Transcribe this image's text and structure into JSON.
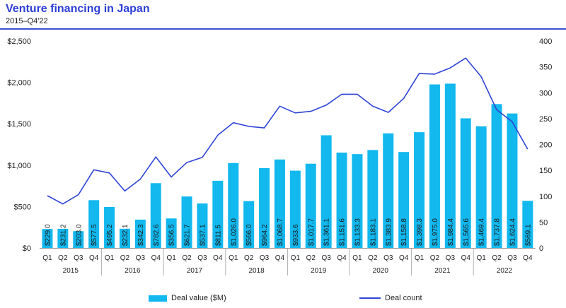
{
  "title": "Venture financing in Japan",
  "subtitle": "2015–Q4'22",
  "colors": {
    "bar": "#12b8ee",
    "line": "#2f44d6",
    "title": "#2e3fd6",
    "rule": "#3b4fd8"
  },
  "legend": {
    "bar_label": "Deal value ($M)",
    "line_label": "Deal count"
  },
  "chart_data": {
    "type": "bar",
    "categories": [
      "Q1",
      "Q2",
      "Q3",
      "Q4",
      "Q1",
      "Q2",
      "Q3",
      "Q4",
      "Q1",
      "Q2",
      "Q3",
      "Q4",
      "Q1",
      "Q2",
      "Q3",
      "Q4",
      "Q1",
      "Q2",
      "Q3",
      "Q4",
      "Q1",
      "Q2",
      "Q3",
      "Q4",
      "Q1",
      "Q2",
      "Q3",
      "Q4",
      "Q1",
      "Q2",
      "Q3",
      "Q4"
    ],
    "years": [
      "2015",
      "2016",
      "2017",
      "2018",
      "2019",
      "2020",
      "2021",
      "2022"
    ],
    "series": [
      {
        "name": "Deal value ($M)",
        "axis": "left",
        "values": [
          229.0,
          231.2,
          203.0,
          577.5,
          495.2,
          232.1,
          342.3,
          782.6,
          356.5,
          621.7,
          537.1,
          811.5,
          1026.0,
          566.0,
          964.2,
          1068.7,
          933.6,
          1017.7,
          1361.1,
          1151.6,
          1133.3,
          1183.1,
          1383.9,
          1158.8,
          1398.3,
          1975.0,
          1984.4,
          1565.6,
          1469.4,
          1737.8,
          1624.4,
          569.1
        ],
        "labels": [
          "$229.0",
          "$231.2",
          "$203.0",
          "$577.5",
          "$495.2",
          "$232.1",
          "$342.3",
          "$782.6",
          "$356.5",
          "$621.7",
          "$537.1",
          "$811.5",
          "$1,026.0",
          "$566.0",
          "$964.2",
          "$1,068.7",
          "$933.6",
          "$1,017.7",
          "$1,361.1",
          "$1,151.6",
          "$1,133.3",
          "$1,183.1",
          "$1,383.9",
          "$1,158.8",
          "$1,398.3",
          "$1,975.0",
          "$1,984.4",
          "$1,565.6",
          "$1,469.4",
          "$1,737.8",
          "$1,624.4",
          "$569.1"
        ]
      },
      {
        "name": "Deal count",
        "axis": "right",
        "type": "line",
        "values": [
          101,
          85,
          103,
          151,
          145,
          110,
          133,
          176,
          137,
          165,
          175,
          218,
          242,
          235,
          232,
          274,
          261,
          264,
          276,
          297,
          297,
          274,
          262,
          289,
          337,
          336,
          348,
          367,
          331,
          267,
          244,
          191
        ]
      }
    ],
    "ylim_left": [
      0,
      2500
    ],
    "yticks_left": [
      0,
      500,
      1000,
      1500,
      2000,
      2500
    ],
    "yticklabels_left": [
      "$0",
      "$500",
      "$1,000",
      "$1,500",
      "$2,000",
      "$2,500"
    ],
    "ylim_right": [
      0,
      400
    ],
    "yticks_right": [
      0,
      50,
      100,
      150,
      200,
      250,
      300,
      350,
      400
    ],
    "yticklabels_right": [
      "0",
      "50",
      "100",
      "150",
      "200",
      "250",
      "300",
      "350",
      "400"
    ],
    "grid": false,
    "legend_position": "bottom"
  }
}
